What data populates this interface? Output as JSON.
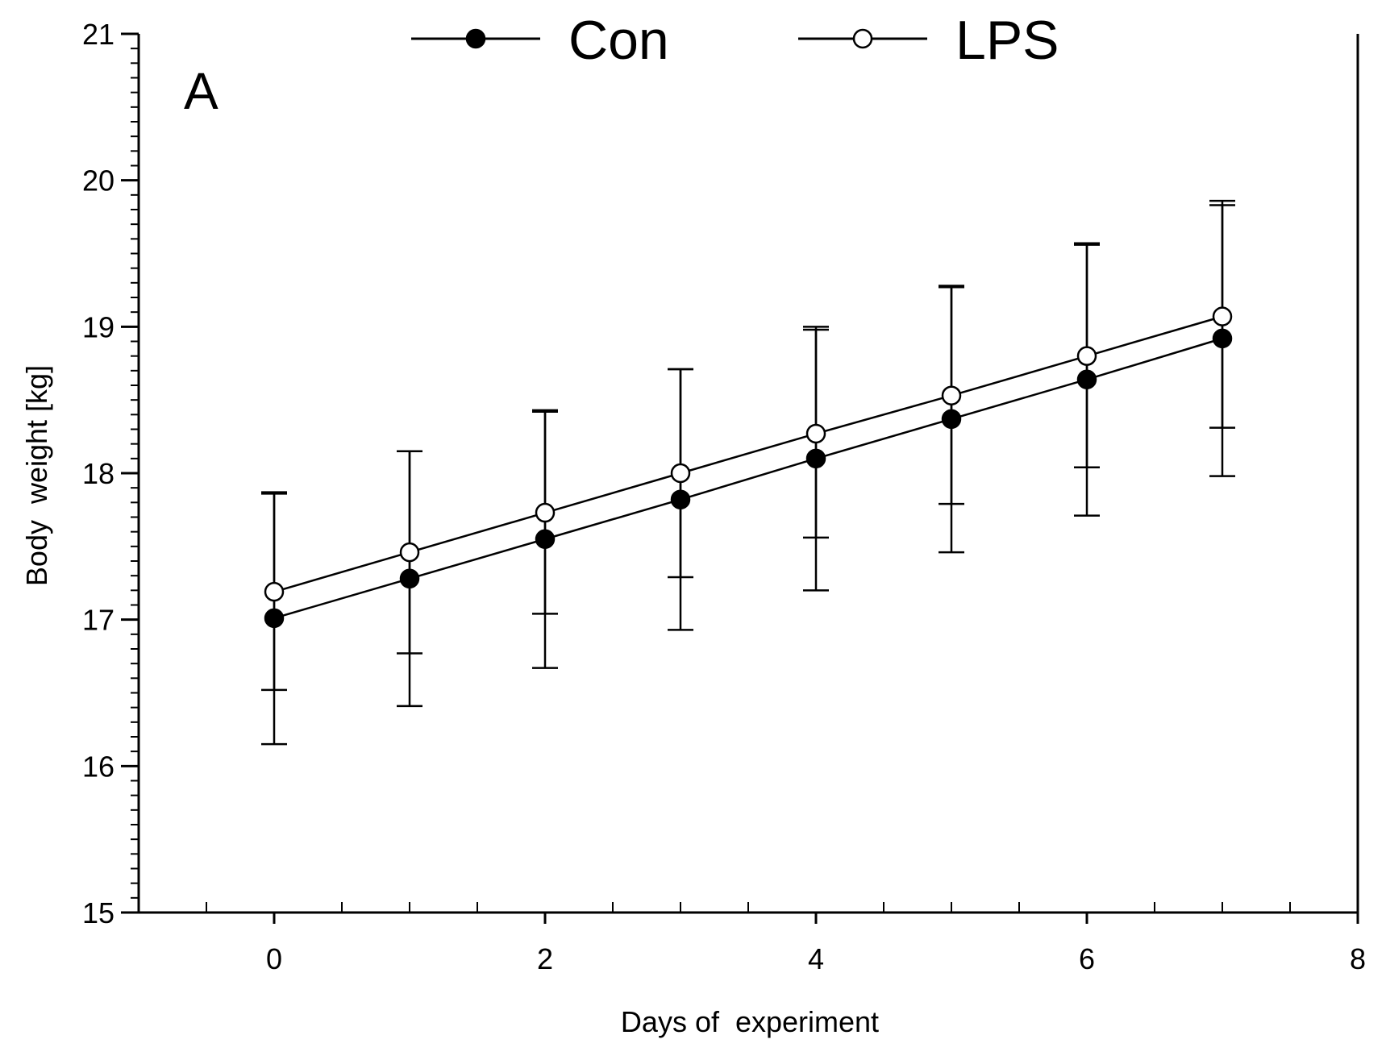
{
  "chart_data": {
    "type": "line",
    "panel_label": "A",
    "xlabel": "Days of  experiment",
    "ylabel": "Body  weight [kg]",
    "xlim": [
      -1,
      8
    ],
    "ylim": [
      15,
      21
    ],
    "x_ticks": [
      0,
      2,
      4,
      6,
      8
    ],
    "x_minor_step": 0.5,
    "y_ticks": [
      15,
      16,
      17,
      18,
      19,
      20,
      21
    ],
    "y_minor_step": 0.1,
    "grid": false,
    "legend_position": "top",
    "x": [
      0,
      1,
      2,
      3,
      4,
      5,
      6,
      7
    ],
    "series": [
      {
        "name": "Con",
        "marker": "filled-circle",
        "values": [
          17.01,
          17.28,
          17.55,
          17.82,
          18.1,
          18.37,
          18.64,
          18.92
        ],
        "errors": [
          0.86,
          0.87,
          0.88,
          0.89,
          0.9,
          0.91,
          0.93,
          0.94
        ]
      },
      {
        "name": "LPS",
        "marker": "open-circle",
        "values": [
          17.19,
          17.46,
          17.73,
          18.0,
          18.27,
          18.53,
          18.8,
          19.07
        ],
        "errors": [
          0.67,
          0.69,
          0.69,
          0.71,
          0.71,
          0.74,
          0.76,
          0.76
        ]
      }
    ]
  }
}
